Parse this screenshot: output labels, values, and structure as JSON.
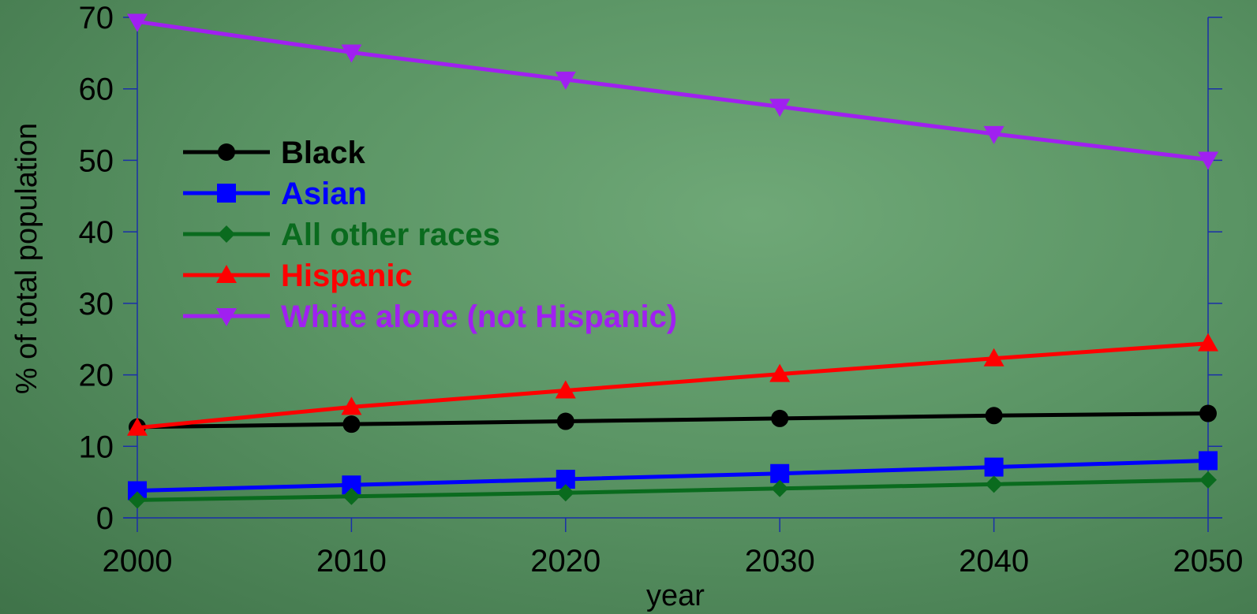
{
  "chart_data": {
    "type": "line",
    "xlabel": "year",
    "ylabel": "% of total population",
    "xlim": [
      2000,
      2050
    ],
    "ylim": [
      0,
      70
    ],
    "x": [
      2000,
      2010,
      2020,
      2030,
      2040,
      2050
    ],
    "x_tick_labels": [
      "2000",
      "2010",
      "2020",
      "2030",
      "2040",
      "2050"
    ],
    "y_ticks": [
      0,
      10,
      20,
      30,
      40,
      50,
      60,
      70
    ],
    "y_tick_labels": [
      "0",
      "10",
      "20",
      "30",
      "40",
      "50",
      "60",
      "70"
    ],
    "grid": false,
    "legend_position": "upper-left",
    "series": [
      {
        "name": "Black",
        "color": "#000000",
        "marker": "circle",
        "values": [
          12.7,
          13.1,
          13.5,
          13.9,
          14.3,
          14.6
        ]
      },
      {
        "name": "Asian",
        "color": "#0000ff",
        "marker": "square",
        "values": [
          3.8,
          4.6,
          5.4,
          6.2,
          7.1,
          8.0
        ]
      },
      {
        "name": "All other races",
        "color": "#0a6b1e",
        "marker": "diamond",
        "values": [
          2.5,
          3.0,
          3.5,
          4.1,
          4.7,
          5.3
        ]
      },
      {
        "name": "Hispanic",
        "color": "#ff0000",
        "marker": "triangle-up",
        "values": [
          12.6,
          15.5,
          17.8,
          20.1,
          22.3,
          24.4
        ]
      },
      {
        "name": "White alone (not Hispanic)",
        "color": "#a020f0",
        "marker": "triangle-down",
        "values": [
          69.4,
          65.1,
          61.3,
          57.5,
          53.7,
          50.1
        ]
      }
    ]
  }
}
